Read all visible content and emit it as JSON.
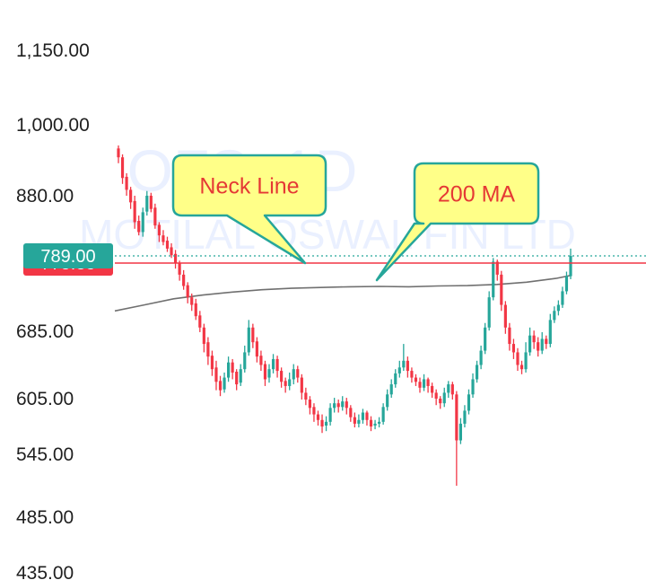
{
  "chart_data": {
    "type": "candlestick",
    "watermark": {
      "symbol": "OFS, 1D",
      "name": "MOTILAL OSWAL FIN LTD"
    },
    "y_ticks": [
      {
        "value": 1150,
        "label": "1,150.00"
      },
      {
        "value": 1000,
        "label": "1,000.00"
      },
      {
        "value": 880,
        "label": "880.00"
      },
      {
        "value": 685,
        "label": "685.00"
      },
      {
        "value": 605,
        "label": "605.00"
      },
      {
        "value": 545,
        "label": "545.00"
      },
      {
        "value": 485,
        "label": "485.00"
      },
      {
        "value": 435,
        "label": "435.00"
      }
    ],
    "current_price": {
      "value": 789,
      "label": "789.00",
      "color": "#26a69a"
    },
    "neck_line": {
      "value": 775.35,
      "label": "775.35",
      "color": "#f23645"
    },
    "annotations": [
      {
        "text": "Neck Line",
        "target_price": 775.35
      },
      {
        "text": "200 MA",
        "target_price": 745
      }
    ],
    "colors": {
      "up": "#26a69a",
      "down": "#f23645",
      "ma": "#707070",
      "callout_fill": "#ffff88",
      "callout_border": "#26a69a"
    },
    "ma200": [
      [
        0,
        712
      ],
      [
        10,
        720
      ],
      [
        20,
        728
      ],
      [
        30,
        733
      ],
      [
        40,
        737
      ],
      [
        50,
        740
      ],
      [
        60,
        742
      ],
      [
        70,
        743
      ],
      [
        80,
        744
      ],
      [
        90,
        744.5
      ],
      [
        100,
        744
      ],
      [
        110,
        745
      ],
      [
        120,
        745.5
      ],
      [
        130,
        747
      ],
      [
        140,
        750
      ],
      [
        150,
        755
      ],
      [
        155,
        759
      ]
    ],
    "ohlc": [
      [
        960,
        945,
        965,
        935
      ],
      [
        945,
        910,
        950,
        900
      ],
      [
        912,
        890,
        918,
        880
      ],
      [
        890,
        870,
        895,
        860
      ],
      [
        872,
        840,
        880,
        830
      ],
      [
        842,
        825,
        850,
        820
      ],
      [
        825,
        855,
        862,
        818
      ],
      [
        856,
        880,
        888,
        850
      ],
      [
        880,
        860,
        885,
        855
      ],
      [
        862,
        835,
        868,
        830
      ],
      [
        836,
        820,
        840,
        810
      ],
      [
        820,
        810,
        828,
        805
      ],
      [
        812,
        800,
        818,
        795
      ],
      [
        802,
        790,
        808,
        785
      ],
      [
        792,
        775,
        798,
        768
      ],
      [
        776,
        760,
        780,
        752
      ],
      [
        760,
        745,
        766,
        740
      ],
      [
        746,
        730,
        750,
        722
      ],
      [
        730,
        720,
        735,
        712
      ],
      [
        722,
        705,
        728,
        700
      ],
      [
        706,
        690,
        712,
        684
      ],
      [
        690,
        670,
        695,
        660
      ],
      [
        672,
        655,
        678,
        645
      ],
      [
        656,
        640,
        662,
        632
      ],
      [
        642,
        625,
        650,
        615
      ],
      [
        626,
        615,
        632,
        608
      ],
      [
        616,
        630,
        636,
        612
      ],
      [
        630,
        648,
        655,
        625
      ],
      [
        648,
        636,
        652,
        628
      ],
      [
        637,
        622,
        640,
        615
      ],
      [
        624,
        640,
        646,
        620
      ],
      [
        640,
        660,
        668,
        636
      ],
      [
        660,
        690,
        700,
        656
      ],
      [
        690,
        672,
        695,
        665
      ],
      [
        673,
        655,
        678,
        648
      ],
      [
        656,
        645,
        662,
        638
      ],
      [
        646,
        628,
        650,
        620
      ],
      [
        630,
        640,
        646,
        624
      ],
      [
        640,
        652,
        658,
        635
      ],
      [
        652,
        638,
        656,
        630
      ],
      [
        638,
        625,
        642,
        618
      ],
      [
        626,
        620,
        630,
        612
      ],
      [
        620,
        628,
        636,
        615
      ],
      [
        628,
        640,
        646,
        622
      ],
      [
        640,
        630,
        644,
        624
      ],
      [
        630,
        612,
        634,
        604
      ],
      [
        612,
        604,
        618,
        598
      ],
      [
        604,
        595,
        608,
        588
      ],
      [
        596,
        588,
        600,
        580
      ],
      [
        588,
        582,
        592,
        576
      ],
      [
        582,
        575,
        588,
        568
      ],
      [
        576,
        580,
        586,
        570
      ],
      [
        580,
        595,
        600,
        576
      ],
      [
        595,
        600,
        606,
        590
      ],
      [
        600,
        596,
        604,
        590
      ],
      [
        596,
        602,
        608,
        592
      ],
      [
        602,
        595,
        606,
        588
      ],
      [
        595,
        585,
        598,
        580
      ],
      [
        585,
        578,
        590,
        574
      ],
      [
        578,
        582,
        588,
        574
      ],
      [
        582,
        590,
        594,
        578
      ],
      [
        590,
        582,
        592,
        576
      ],
      [
        582,
        575,
        586,
        570
      ],
      [
        576,
        578,
        582,
        572
      ],
      [
        578,
        580,
        585,
        574
      ],
      [
        580,
        596,
        600,
        577
      ],
      [
        596,
        610,
        616,
        592
      ],
      [
        610,
        622,
        628,
        606
      ],
      [
        622,
        635,
        640,
        618
      ],
      [
        635,
        642,
        650,
        630
      ],
      [
        642,
        650,
        670,
        638
      ],
      [
        650,
        638,
        655,
        630
      ],
      [
        638,
        630,
        642,
        624
      ],
      [
        630,
        625,
        634,
        620
      ],
      [
        625,
        618,
        630,
        612
      ],
      [
        618,
        628,
        634,
        614
      ],
      [
        628,
        620,
        630,
        612
      ],
      [
        620,
        612,
        624,
        606
      ],
      [
        612,
        605,
        616,
        598
      ],
      [
        605,
        600,
        608,
        594
      ],
      [
        600,
        612,
        618,
        596
      ],
      [
        612,
        622,
        626,
        606
      ],
      [
        622,
        610,
        625,
        604
      ],
      [
        610,
        560,
        614,
        515
      ],
      [
        560,
        578,
        584,
        556
      ],
      [
        578,
        592,
        598,
        574
      ],
      [
        592,
        610,
        616,
        588
      ],
      [
        610,
        628,
        635,
        606
      ],
      [
        628,
        645,
        650,
        624
      ],
      [
        645,
        662,
        668,
        640
      ],
      [
        662,
        690,
        696,
        658
      ],
      [
        690,
        730,
        738,
        686
      ],
      [
        730,
        778,
        785,
        726
      ],
      [
        778,
        760,
        782,
        752
      ],
      [
        760,
        720,
        765,
        712
      ],
      [
        720,
        690,
        725,
        682
      ],
      [
        690,
        670,
        696,
        662
      ],
      [
        670,
        660,
        676,
        652
      ],
      [
        660,
        645,
        665,
        638
      ],
      [
        645,
        640,
        650,
        634
      ],
      [
        640,
        660,
        672,
        636
      ],
      [
        660,
        680,
        690,
        656
      ],
      [
        680,
        672,
        686,
        664
      ],
      [
        672,
        662,
        678,
        655
      ],
      [
        662,
        676,
        684,
        658
      ],
      [
        676,
        670,
        680,
        664
      ],
      [
        670,
        700,
        708,
        666
      ],
      [
        700,
        712,
        718,
        696
      ],
      [
        712,
        720,
        726,
        706
      ],
      [
        720,
        738,
        744,
        716
      ],
      [
        738,
        758,
        764,
        734
      ],
      [
        758,
        789,
        800,
        754
      ]
    ]
  }
}
